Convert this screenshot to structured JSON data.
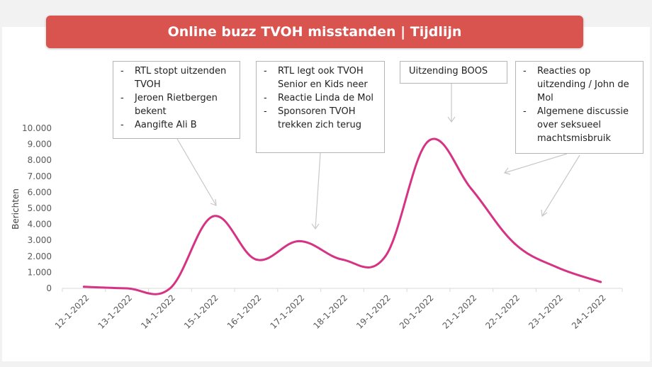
{
  "title": "Online buzz TVOH misstanden | Tijdlijn",
  "callouts": [
    {
      "items": [
        "RTL stopt uitzenden TVOH",
        "Jeroen Rietbergen bekent",
        "Aangifte Ali B"
      ]
    },
    {
      "items": [
        "RTL legt ook TVOH Senior en Kids neer",
        "Reactie Linda de Mol",
        "Sponsoren TVOH trekken zich terug"
      ]
    },
    {
      "items": [
        "Uitzending BOOS"
      ]
    },
    {
      "items": [
        "Reacties op uitzending / John de Mol",
        "Algemene discussie over seksueel machtsmisbruik"
      ]
    }
  ],
  "colors": {
    "title_bg": "#d9534f",
    "line": "#d63384",
    "arrow": "#c8c8c8",
    "axis": "#d9d9d9"
  },
  "chart_data": {
    "type": "line",
    "title": "",
    "xlabel": "",
    "ylabel": "Berichten",
    "categories": [
      "12-1-2022",
      "13-1-2022",
      "14-1-2022",
      "15-1-2022",
      "16-1-2022",
      "17-1-2022",
      "18-1-2022",
      "19-1-2022",
      "20-1-2022",
      "21-1-2022",
      "22-1-2022",
      "23-1-2022",
      "24-1-2022"
    ],
    "values": [
      100,
      0,
      0,
      4500,
      1800,
      2950,
      1800,
      2000,
      9200,
      6200,
      2800,
      1300,
      400
    ],
    "y_ticks": [
      "0",
      "1.000",
      "2.000",
      "3.000",
      "4.000",
      "5.000",
      "6.000",
      "7.000",
      "8.000",
      "9.000",
      "10.000"
    ],
    "ylim": [
      0,
      10000
    ],
    "grid": false,
    "legend": "none",
    "smooth": true
  }
}
